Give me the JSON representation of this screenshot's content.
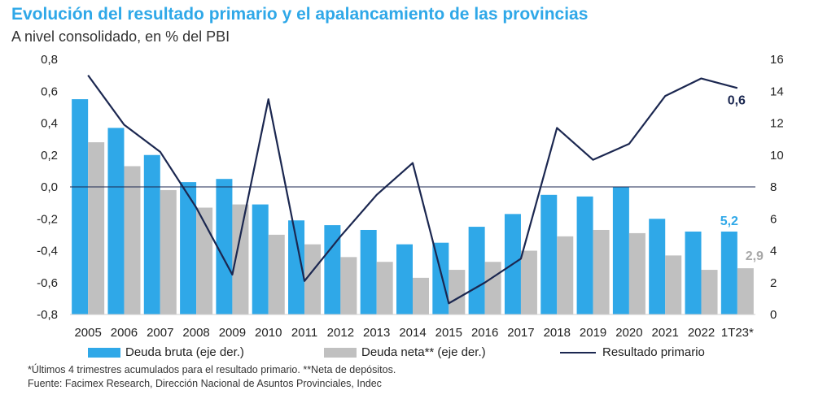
{
  "title": "Evolución del resultado primario y el apalancamiento de las provincias",
  "subtitle": "A nivel consolidado, en % del PBI",
  "colors": {
    "title": "#2fa8e8",
    "bruta": "#2fa8e8",
    "neta": "#c0c0c0",
    "line": "#1b2750"
  },
  "chart_data": {
    "type": "bar+line",
    "categories": [
      "2005",
      "2006",
      "2007",
      "2008",
      "2009",
      "2010",
      "2011",
      "2012",
      "2013",
      "2014",
      "2015",
      "2016",
      "2017",
      "2018",
      "2019",
      "2020",
      "2021",
      "2022",
      "1T23*"
    ],
    "left_axis": {
      "min": -0.8,
      "max": 0.8,
      "ticks": [
        "0,8",
        "0,6",
        "0,4",
        "0,2",
        "0,0",
        "-0,2",
        "-0,4",
        "-0,6",
        "-0,8"
      ]
    },
    "right_axis": {
      "min": 0,
      "max": 16,
      "ticks": [
        "16",
        "14",
        "12",
        "10",
        "8",
        "6",
        "4",
        "2",
        "0"
      ]
    },
    "series": [
      {
        "name": "Deuda bruta (eje der.)",
        "axis": "right",
        "kind": "bar",
        "values": [
          13.5,
          11.7,
          10.0,
          8.3,
          8.5,
          6.9,
          5.9,
          5.6,
          5.3,
          4.4,
          4.5,
          5.5,
          6.3,
          7.5,
          7.4,
          8.0,
          6.0,
          5.2,
          5.2
        ]
      },
      {
        "name": "Deuda neta** (eje der.)",
        "axis": "right",
        "kind": "bar",
        "values": [
          10.8,
          9.3,
          7.8,
          6.7,
          6.9,
          5.0,
          4.4,
          3.6,
          3.3,
          2.3,
          2.8,
          3.3,
          4.0,
          4.9,
          5.3,
          5.1,
          3.7,
          2.8,
          2.9
        ]
      },
      {
        "name": "Resultado primario",
        "axis": "left",
        "kind": "line",
        "values": [
          0.7,
          0.39,
          0.22,
          -0.13,
          -0.55,
          0.55,
          -0.59,
          -0.31,
          -0.05,
          0.15,
          -0.73,
          -0.6,
          -0.45,
          0.37,
          0.17,
          0.27,
          0.57,
          0.68,
          0.62
        ]
      }
    ],
    "annotations": {
      "line_last": "0,6",
      "bruta_last": "5,2",
      "neta_last": "2,9"
    }
  },
  "legend": {
    "bruta": "Deuda bruta (eje der.)",
    "neta": "Deuda neta** (eje der.)",
    "line": "Resultado primario"
  },
  "notes": [
    "*Últimos 4 trimestres acumulados para el resultado primario. **Neta de depósitos.",
    "Fuente: Facimex Research, Dirección Nacional de Asuntos Provinciales, Indec"
  ]
}
